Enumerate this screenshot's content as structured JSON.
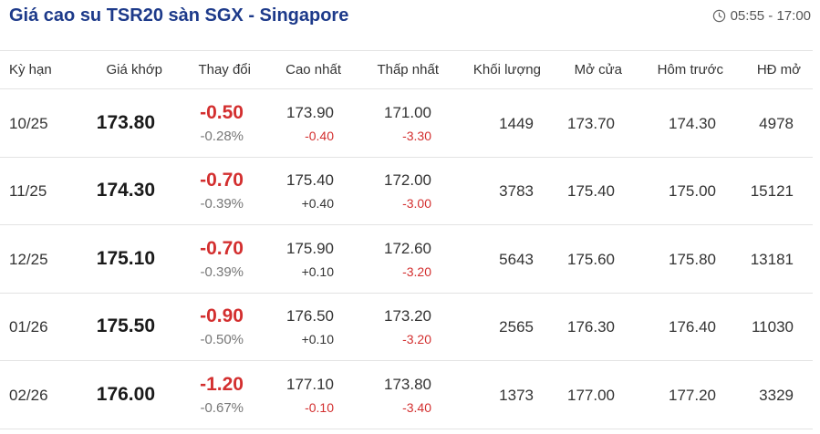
{
  "header": {
    "title": "Giá cao su TSR20 sàn SGX - Singapore",
    "time": "05:55 - 17:00",
    "time_icon": "clock-icon"
  },
  "columns": {
    "term": "Kỳ hạn",
    "price": "Giá khớp",
    "change": "Thay đổi",
    "high": "Cao nhất",
    "low": "Thấp nhất",
    "volume": "Khối lượng",
    "open": "Mở cửa",
    "prev": "Hôm trước",
    "oi": "HĐ mở"
  },
  "rows": [
    {
      "term": "10/25",
      "price": "173.80",
      "change": "-0.50",
      "change_pct": "-0.28%",
      "high": "173.90",
      "high_chg": "-0.40",
      "low": "171.00",
      "low_chg": "-3.30",
      "volume": "1449",
      "open": "173.70",
      "prev": "174.30",
      "oi": "4978"
    },
    {
      "term": "11/25",
      "price": "174.30",
      "change": "-0.70",
      "change_pct": "-0.39%",
      "high": "175.40",
      "high_chg": "+0.40",
      "low": "172.00",
      "low_chg": "-3.00",
      "volume": "3783",
      "open": "175.40",
      "prev": "175.00",
      "oi": "15121"
    },
    {
      "term": "12/25",
      "price": "175.10",
      "change": "-0.70",
      "change_pct": "-0.39%",
      "high": "175.90",
      "high_chg": "+0.10",
      "low": "172.60",
      "low_chg": "-3.20",
      "volume": "5643",
      "open": "175.60",
      "prev": "175.80",
      "oi": "13181"
    },
    {
      "term": "01/26",
      "price": "175.50",
      "change": "-0.90",
      "change_pct": "-0.50%",
      "high": "176.50",
      "high_chg": "+0.10",
      "low": "173.20",
      "low_chg": "-3.20",
      "volume": "2565",
      "open": "176.30",
      "prev": "176.40",
      "oi": "11030"
    },
    {
      "term": "02/26",
      "price": "176.00",
      "change": "-1.20",
      "change_pct": "-0.67%",
      "high": "177.10",
      "high_chg": "-0.10",
      "low": "173.80",
      "low_chg": "-3.40",
      "volume": "1373",
      "open": "177.00",
      "prev": "177.20",
      "oi": "3329"
    }
  ],
  "colors": {
    "title": "#1d3a8a",
    "negative": "#d32f2f"
  }
}
